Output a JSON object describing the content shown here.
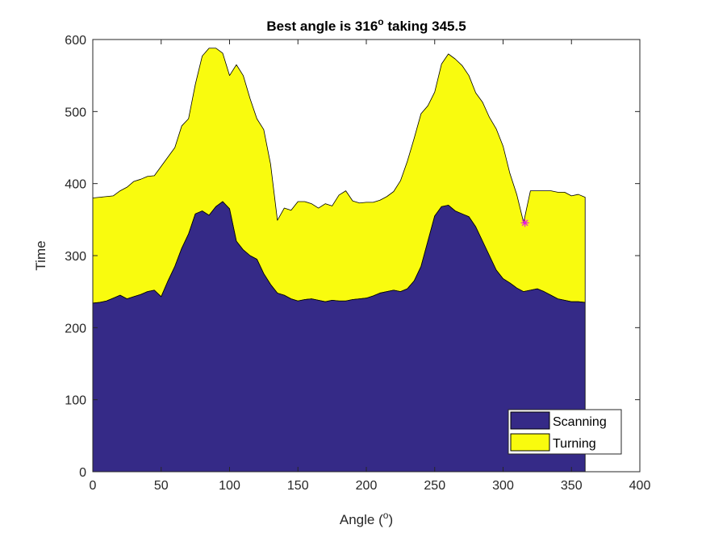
{
  "chart_data": {
    "type": "area",
    "title_main": "Best angle is 316",
    "title_sup": "o",
    "title_rest": " taking 345.5",
    "xlabel_main": "Angle (",
    "xlabel_sup": "o",
    "xlabel_rest": ")",
    "ylabel": "Time",
    "xlim": [
      0,
      400
    ],
    "ylim": [
      0,
      600
    ],
    "xticks": [
      0,
      50,
      100,
      150,
      200,
      250,
      300,
      350,
      400
    ],
    "yticks": [
      0,
      100,
      200,
      300,
      400,
      500,
      600
    ],
    "grid": false,
    "stacked": true,
    "legend_position": "bottom-right",
    "x": [
      0,
      5,
      10,
      15,
      20,
      25,
      30,
      35,
      40,
      45,
      50,
      55,
      60,
      65,
      70,
      75,
      80,
      85,
      90,
      95,
      100,
      105,
      110,
      115,
      120,
      125,
      130,
      135,
      140,
      145,
      150,
      155,
      160,
      165,
      170,
      175,
      180,
      185,
      190,
      195,
      200,
      205,
      210,
      215,
      220,
      225,
      230,
      235,
      240,
      245,
      250,
      255,
      260,
      265,
      270,
      275,
      280,
      285,
      290,
      295,
      300,
      305,
      310,
      315,
      320,
      325,
      330,
      335,
      340,
      345,
      350,
      355,
      360
    ],
    "series": [
      {
        "name": "Scanning",
        "color": "#352a87",
        "values": [
          234,
          235,
          237,
          241,
          245,
          240,
          243,
          246,
          250,
          252,
          243,
          265,
          285,
          310,
          330,
          358,
          362,
          356,
          368,
          375,
          365,
          320,
          308,
          300,
          295,
          275,
          260,
          248,
          245,
          240,
          237,
          239,
          240,
          238,
          236,
          238,
          237,
          237,
          239,
          240,
          241,
          244,
          248,
          250,
          252,
          250,
          254,
          265,
          285,
          320,
          355,
          368,
          370,
          362,
          358,
          354,
          340,
          320,
          300,
          280,
          268,
          262,
          255,
          250,
          252,
          254,
          250,
          245,
          240,
          238,
          236,
          236,
          235
        ],
        "stroke_color": "#000000"
      },
      {
        "name": "Turning",
        "color": "#f9fb0e",
        "values": [
          146,
          146,
          145,
          142,
          145,
          155,
          160,
          160,
          160,
          159,
          181,
          172,
          165,
          170,
          160,
          180,
          215,
          232,
          220,
          206,
          185,
          245,
          242,
          218,
          195,
          200,
          167,
          101,
          121,
          123,
          138,
          136,
          132,
          128,
          136,
          131,
          147,
          153,
          137,
          133,
          133,
          130,
          129,
          132,
          137,
          154,
          177,
          198,
          212,
          188,
          172,
          198,
          210,
          211,
          206,
          196,
          186,
          193,
          192,
          196,
          184,
          152,
          130,
          96,
          138,
          136,
          140,
          145,
          148,
          150,
          147,
          149,
          146
        ]
      }
    ],
    "annotations": [
      {
        "type": "marker",
        "symbol": "*",
        "x": 316,
        "y": 345.5,
        "color": "#e619e6"
      }
    ],
    "legend": [
      "Scanning",
      "Turning"
    ],
    "colors": {
      "scanning": "#352a87",
      "turning": "#f9fb0e",
      "marker": "#e619e6",
      "axis": "#262626"
    }
  }
}
